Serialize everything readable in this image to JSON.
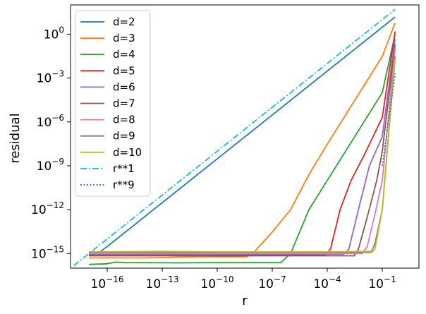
{
  "chart_data": {
    "type": "line",
    "xscale": "log",
    "yscale": "log",
    "xlabel": "r",
    "ylabel": "residual",
    "xlim": [
      1e-18,
      10
    ],
    "ylim": [
      1e-16,
      100
    ],
    "xticks": [
      {
        "value": 1e-16,
        "base": "10",
        "exp": "−16"
      },
      {
        "value": 1e-13,
        "base": "10",
        "exp": "−13"
      },
      {
        "value": 1e-10,
        "base": "10",
        "exp": "−10"
      },
      {
        "value": 1e-07,
        "base": "10",
        "exp": "−7"
      },
      {
        "value": 0.0001,
        "base": "10",
        "exp": "−4"
      },
      {
        "value": 0.1,
        "base": "10",
        "exp": "−1"
      }
    ],
    "yticks": [
      {
        "value": 1e-15,
        "base": "10",
        "exp": "−15"
      },
      {
        "value": 1e-12,
        "base": "10",
        "exp": "−12"
      },
      {
        "value": 1e-09,
        "base": "10",
        "exp": "−9"
      },
      {
        "value": 1e-06,
        "base": "10",
        "exp": "−6"
      },
      {
        "value": 0.001,
        "base": "10",
        "exp": "−3"
      },
      {
        "value": 1,
        "base": "10",
        "exp": "0"
      }
    ],
    "legend_position": "upper-left",
    "grid": false,
    "series": [
      {
        "name": "d=2",
        "color": "#1f77b4",
        "style": "solid",
        "points": [
          [
            1e-17,
            1e-15
          ],
          [
            3e-17,
            1e-15
          ],
          [
            1e-16,
            3e-15
          ],
          [
            1e-13,
            3e-12
          ],
          [
            1e-10,
            3e-09
          ],
          [
            1e-07,
            3e-06
          ],
          [
            0.0001,
            0.003
          ],
          [
            0.1,
            3
          ],
          [
            0.5,
            15
          ]
        ]
      },
      {
        "name": "d=3",
        "color": "#ff7f0e",
        "style": "solid",
        "points": [
          [
            1e-17,
            5e-16
          ],
          [
            1e-14,
            5e-16
          ],
          [
            1e-11,
            6e-16
          ],
          [
            4e-09,
            6e-16
          ],
          [
            1e-08,
            1.2e-15
          ],
          [
            1e-07,
            3e-14
          ],
          [
            1e-06,
            1e-12
          ],
          [
            1e-05,
            2.5e-10
          ],
          [
            0.0001,
            3e-08
          ],
          [
            0.001,
            3e-06
          ],
          [
            0.01,
            0.0003
          ],
          [
            0.1,
            0.03
          ],
          [
            0.5,
            6
          ]
        ]
      },
      {
        "name": "d=4",
        "color": "#2ca02c",
        "style": "solid",
        "points": [
          [
            1e-17,
            1.8e-16
          ],
          [
            1e-16,
            2e-16
          ],
          [
            3e-16,
            2.6e-16
          ],
          [
            1e-15,
            2.4e-16
          ],
          [
            1e-12,
            2.3e-16
          ],
          [
            1e-10,
            2.4e-16
          ],
          [
            1e-08,
            2.4e-16
          ],
          [
            3e-07,
            2.4e-16
          ],
          [
            1e-06,
            1e-15
          ],
          [
            1e-05,
            1e-12
          ],
          [
            0.0001,
            1e-10
          ],
          [
            0.001,
            1e-08
          ],
          [
            0.01,
            1e-06
          ],
          [
            0.1,
            0.0001
          ],
          [
            0.5,
            1
          ]
        ]
      },
      {
        "name": "d=5",
        "color": "#d62728",
        "style": "solid",
        "points": [
          [
            1e-17,
            8e-16
          ],
          [
            1e-14,
            8e-16
          ],
          [
            1e-10,
            8e-16
          ],
          [
            1e-06,
            8e-16
          ],
          [
            8e-05,
            8e-16
          ],
          [
            0.00015,
            2e-15
          ],
          [
            0.0005,
            1e-12
          ],
          [
            0.002,
            1e-10
          ],
          [
            0.01,
            5e-09
          ],
          [
            0.1,
            2e-06
          ],
          [
            0.5,
            1.5
          ]
        ]
      },
      {
        "name": "d=6",
        "color": "#9467bd",
        "style": "solid",
        "points": [
          [
            1e-17,
            9e-16
          ],
          [
            1e-10,
            9e-16
          ],
          [
            0.0001,
            9e-16
          ],
          [
            0.0008,
            9e-16
          ],
          [
            0.0015,
            2e-15
          ],
          [
            0.005,
            1e-12
          ],
          [
            0.02,
            1e-09
          ],
          [
            0.1,
            1e-07
          ],
          [
            0.5,
            0.5
          ]
        ]
      },
      {
        "name": "d=7",
        "color": "#8c564b",
        "style": "solid",
        "points": [
          [
            1e-17,
            7e-16
          ],
          [
            1e-10,
            7e-16
          ],
          [
            0.0001,
            7e-16
          ],
          [
            0.003,
            7e-16
          ],
          [
            0.005,
            2e-15
          ],
          [
            0.015,
            3e-13
          ],
          [
            0.05,
            1e-10
          ],
          [
            0.1,
            1e-08
          ],
          [
            0.5,
            0.2
          ]
        ]
      },
      {
        "name": "d=8",
        "color": "#e377c2",
        "style": "solid",
        "points": [
          [
            1e-17,
            1e-15
          ],
          [
            1e-10,
            1e-15
          ],
          [
            0.0001,
            1e-15
          ],
          [
            0.008,
            1e-15
          ],
          [
            0.015,
            3e-15
          ],
          [
            0.04,
            5e-13
          ],
          [
            0.1,
            1e-10
          ],
          [
            0.5,
            0.1
          ]
        ]
      },
      {
        "name": "d=9",
        "color": "#7f7f7f",
        "style": "solid",
        "points": [
          [
            1e-17,
            1.2e-15
          ],
          [
            1e-10,
            1.2e-15
          ],
          [
            0.0001,
            1.2e-15
          ],
          [
            0.025,
            1.2e-15
          ],
          [
            0.04,
            5e-15
          ],
          [
            0.1,
            1e-12
          ],
          [
            0.5,
            0.03
          ]
        ]
      },
      {
        "name": "d=10",
        "color": "#bcbd22",
        "style": "solid",
        "points": [
          [
            1e-17,
            1.3e-15
          ],
          [
            1e-13,
            1.4e-15
          ],
          [
            1e-10,
            1.3e-15
          ],
          [
            1e-07,
            1.3e-15
          ],
          [
            0.0001,
            1.3e-15
          ],
          [
            0.01,
            1.4e-15
          ],
          [
            0.03,
            1.4e-15
          ],
          [
            0.04,
            2e-15
          ],
          [
            0.1,
            1e-12
          ],
          [
            0.5,
            0.02
          ]
        ]
      },
      {
        "name": "r**1",
        "color": "#17becf",
        "style": "dashdot",
        "points": [
          [
            1.5e-18,
            1.5e-16
          ],
          [
            0.5,
            50
          ]
        ]
      },
      {
        "name": "r**9",
        "color": "#1f77b4",
        "style": "dotted",
        "points": [
          [
            0.1,
            1e-09
          ],
          [
            0.5,
            0.002
          ]
        ]
      }
    ]
  }
}
